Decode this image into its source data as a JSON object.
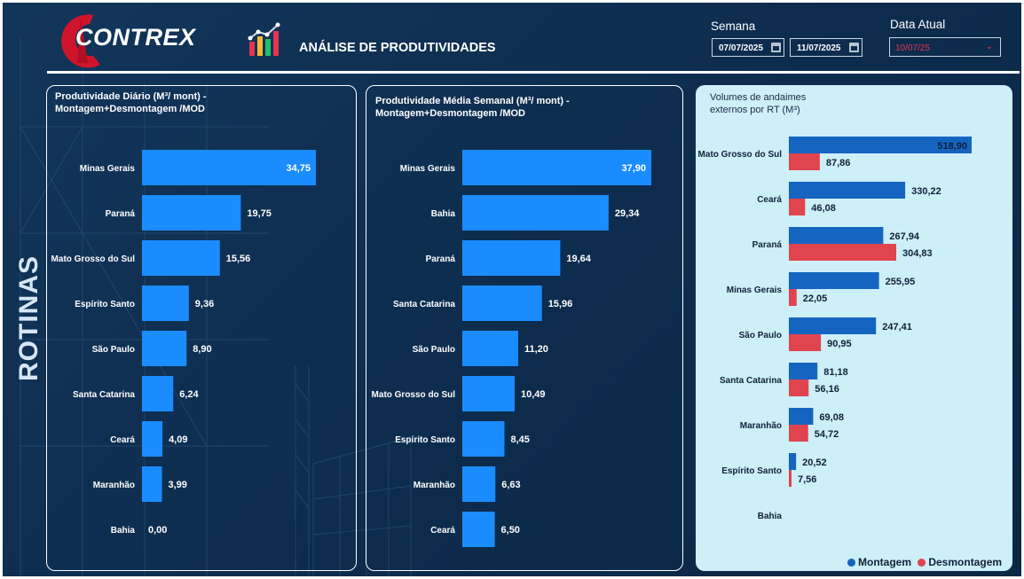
{
  "header": {
    "logo_text": "CONTREX",
    "report_title": "ANÁLISE DE PRODUTIVIDADES",
    "week_label": "Semana",
    "week_start": "07/07/2025",
    "week_end": "11/07/2025",
    "current_date_label": "Data Atual",
    "current_date": "10/07/25",
    "side_label": "ROTINAS"
  },
  "colors": {
    "bar_blue": "#1a8cff",
    "montagem": "#1565c0",
    "desmontagem": "#e0444f",
    "accent_red": "#e53451"
  },
  "chart_data": [
    {
      "type": "bar",
      "orientation": "horizontal",
      "title": "Produtividade  Diário (M³/ mont) - Montagem+Desmontagem /MOD",
      "categories": [
        "Minas Gerais",
        "Paraná",
        "Mato Grosso do Sul",
        "Espírito Santo",
        "São Paulo",
        "Santa Catarina",
        "Ceará",
        "Maranhão",
        "Bahia"
      ],
      "values": [
        34.75,
        19.75,
        15.56,
        9.36,
        8.9,
        6.24,
        4.09,
        3.99,
        0.0
      ],
      "labels": [
        "34,75",
        "19,75",
        "15,56",
        "9,36",
        "8,90",
        "6,24",
        "4,09",
        "3,99",
        "0,00"
      ],
      "xlim": [
        0,
        34.75
      ]
    },
    {
      "type": "bar",
      "orientation": "horizontal",
      "title": "Produtividade  Média Semanal (M³/ mont) - Montagem+Desmontagem /MOD",
      "categories": [
        "Minas Gerais",
        "Bahia",
        "Paraná",
        "Santa Catarina",
        "São Paulo",
        "Mato Grosso do Sul",
        "Espírito Santo",
        "Maranhão",
        "Ceará"
      ],
      "values": [
        37.9,
        29.34,
        19.64,
        15.96,
        11.2,
        10.49,
        8.45,
        6.63,
        6.5
      ],
      "labels": [
        "37,90",
        "29,34",
        "19,64",
        "15,96",
        "11,20",
        "10,49",
        "8,45",
        "6,63",
        "6,50"
      ],
      "xlim": [
        0,
        37.9
      ]
    },
    {
      "type": "bar",
      "orientation": "horizontal",
      "title": "Volumes de andaimes externos por  RT (M³)",
      "categories": [
        "Mato Grosso do Sul",
        "Ceará",
        "Paraná",
        "Minas Gerais",
        "São Paulo",
        "Santa Catarina",
        "Maranhão",
        "Espírito Santo",
        "Bahia"
      ],
      "series": [
        {
          "name": "Montagem",
          "values": [
            518.9,
            330.22,
            267.94,
            255.95,
            247.41,
            81.18,
            69.08,
            20.52,
            null
          ],
          "labels": [
            "518,90",
            "330,22",
            "267,94",
            "255,95",
            "247,41",
            "81,18",
            "69,08",
            "20,52",
            ""
          ]
        },
        {
          "name": "Desmontagem",
          "values": [
            87.86,
            46.08,
            304.83,
            22.05,
            90.95,
            56.16,
            54.72,
            7.56,
            null
          ],
          "labels": [
            "87,86",
            "46,08",
            "304,83",
            "22,05",
            "90,95",
            "56,16",
            "54,72",
            "7,56",
            ""
          ]
        }
      ],
      "xlim": [
        0,
        518.9
      ],
      "legend": "bottom-right"
    }
  ]
}
